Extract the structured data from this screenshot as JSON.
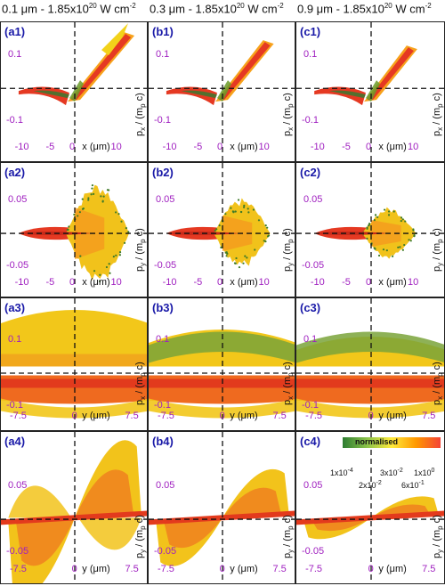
{
  "columns": [
    {
      "prefix": "0.1 μm - 1.85x10",
      "exp": "20",
      "suffix": " W cm",
      "sup2": "-2"
    },
    {
      "prefix": "0.3 μm - 1.85x10",
      "exp": "20",
      "suffix": " W cm",
      "sup2": "-2"
    },
    {
      "prefix": "0.9 μm - 1.85x10",
      "exp": "20",
      "suffix": " W cm",
      "sup2": "-2"
    }
  ],
  "rows": [
    {
      "xlabel": "x (μm)",
      "ylabel_var": "p",
      "ylabel_sub": "x",
      "ylabel_rest": " / (m",
      "ylabel_sub2": "p",
      "ylabel_end": " c)",
      "yticks": [
        "0.1",
        "-0.1"
      ],
      "xticks": [
        "-10",
        "-5",
        "0",
        "10"
      ]
    },
    {
      "xlabel": "x (μm)",
      "ylabel_var": "p",
      "ylabel_sub": "y",
      "ylabel_rest": " / (m",
      "ylabel_sub2": "p",
      "ylabel_end": " c)",
      "yticks": [
        "0.05",
        "-0.05"
      ],
      "xticks": [
        "-10",
        "-5",
        "0",
        "10"
      ]
    },
    {
      "xlabel": "y (μm)",
      "ylabel_var": "p",
      "ylabel_sub": "x",
      "ylabel_rest": " / (m",
      "ylabel_sub2": "p",
      "ylabel_end": " c)",
      "yticks": [
        "0.1",
        "-0.1"
      ],
      "xticks": [
        "-7.5",
        "0",
        "7.5"
      ]
    },
    {
      "xlabel": "y (μm)",
      "ylabel_var": "p",
      "ylabel_sub": "y",
      "ylabel_rest": " / (m",
      "ylabel_sub2": "p",
      "ylabel_end": " c)",
      "yticks": [
        "0.05",
        "-0.05"
      ],
      "xticks": [
        "-7.5",
        "0",
        "7.5"
      ]
    }
  ],
  "panel_labels": [
    [
      "(a1)",
      "(b1)",
      "(c1)"
    ],
    [
      "(a2)",
      "(b2)",
      "(c2)"
    ],
    [
      "(a3)",
      "(b3)",
      "(c3)"
    ],
    [
      "(a4)",
      "(b4)",
      "(c4)"
    ]
  ],
  "colorbar": {
    "title": "normalised",
    "ticks": [
      {
        "m": "1x10",
        "e": "-4"
      },
      {
        "m": "2x10",
        "e": "-2"
      },
      {
        "m": "3x10",
        "e": "-2"
      },
      {
        "m": "6x10",
        "e": "-1"
      },
      {
        "m": "1x10",
        "e": "0"
      }
    ],
    "colors": [
      "#2e7d32",
      "#8bc34a",
      "#ffeb3b",
      "#ff9800",
      "#f44336"
    ]
  },
  "colors": {
    "tick": "#a020c0",
    "label": "#1a1aa8"
  },
  "chart_data": {
    "type": "heatmap",
    "description_kind": "phase-space density maps",
    "grid": {
      "rows": 4,
      "cols": 3
    },
    "dashed_zero_lines": true
  }
}
